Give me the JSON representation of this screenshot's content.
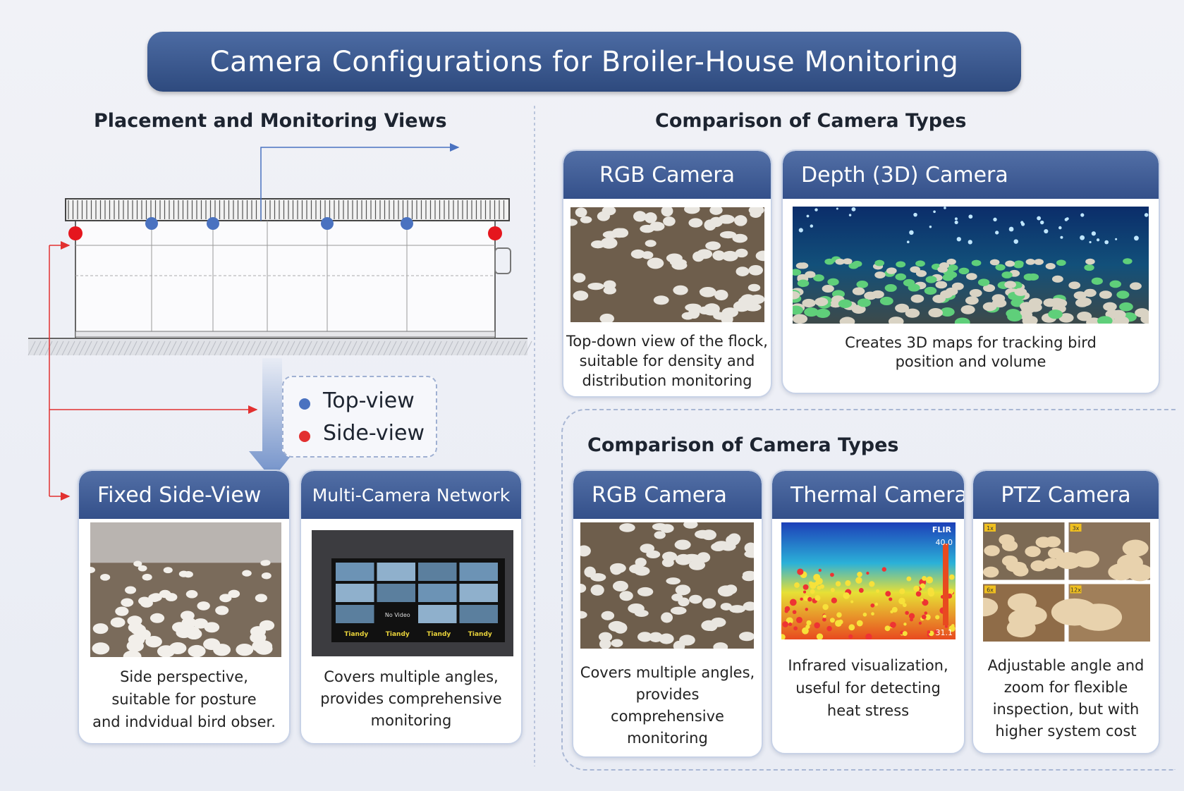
{
  "header": {
    "title": "Camera Configurations for Broiler-House Monitoring"
  },
  "left": {
    "heading": "Placement and Monitoring Views",
    "legend": {
      "top_view": "Top-view",
      "side_view": "Side-view"
    },
    "cards": [
      {
        "title": "Fixed Side-View",
        "description": [
          "Side perspective,",
          "suitable for posture",
          "and indvidual bird obser."
        ]
      },
      {
        "title": "Multi-Camera Network",
        "description": [
          "Covers multiple angles,",
          "provides comprehensive",
          "monitoring"
        ],
        "screen": {
          "center": "No Video",
          "labels": [
            "Tiandy",
            "Tiandy",
            "Tiandy",
            "Tiandy"
          ]
        }
      }
    ]
  },
  "right_top": {
    "heading": "Comparison of Camera Types",
    "cards": [
      {
        "title": "RGB Camera",
        "description": [
          "Top-down view of the flock,",
          "suitable for density and",
          "distribution monitoring"
        ]
      },
      {
        "title": "Depth (3D) Camera",
        "description": [
          "Creates 3D maps for tracking bird",
          "position and volume"
        ]
      }
    ]
  },
  "right_bottom": {
    "heading": "Comparison of Camera Types",
    "cards": [
      {
        "title": "RGB Camera",
        "description": [
          "Covers multiple angles,",
          "provides",
          "comprehensive",
          "monitoring"
        ]
      },
      {
        "title": "Thermal Camera",
        "description": [
          "Infrared visualization,",
          "useful for detecting",
          "heat stress"
        ],
        "overlay": {
          "brand": "FLIR",
          "max": "40.0",
          "min": "31.1"
        }
      },
      {
        "title": "PTZ Camera",
        "description": [
          "Adjustable angle and",
          "zoom for flexible",
          "inspection, but with",
          "higher system cost"
        ],
        "zoom_labels": [
          "1x",
          "3x",
          "6x",
          "12x"
        ]
      }
    ]
  }
}
